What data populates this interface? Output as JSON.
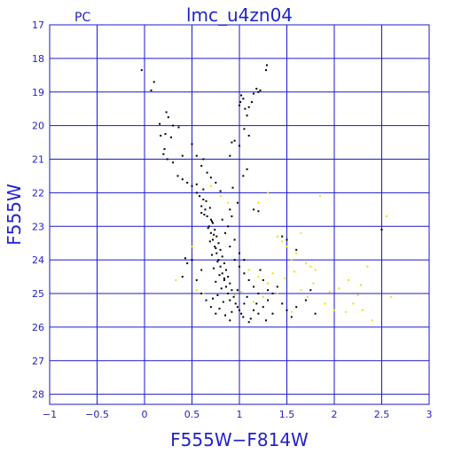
{
  "chart_data": {
    "type": "scatter",
    "title": "lmc_u4zn04",
    "corner_label": "PC",
    "xlabel": "F555W−F814W",
    "ylabel": "F555W",
    "xlim": [
      -1,
      3
    ],
    "ylim": [
      28.3,
      17
    ],
    "y_inverted": true,
    "grid": true,
    "x_ticks": [
      "−1",
      "−0.5",
      "0",
      "0.5",
      "1",
      "1.5",
      "2",
      "2.5",
      "3"
    ],
    "y_ticks": [
      "17",
      "18",
      "19",
      "20",
      "21",
      "22",
      "23",
      "24",
      "25",
      "26",
      "27",
      "28"
    ],
    "colors": {
      "axes": "#1a1acc",
      "text": "#2222cc",
      "main_series": "#000000",
      "secondary_series": "#e6e600"
    },
    "series": [
      {
        "color": "#000000",
        "points": [
          [
            -0.03,
            18.35
          ],
          [
            0.1,
            18.7
          ],
          [
            0.07,
            18.95
          ],
          [
            0.23,
            19.6
          ],
          [
            0.25,
            19.75
          ],
          [
            0.16,
            19.95
          ],
          [
            0.3,
            20.0
          ],
          [
            0.36,
            20.05
          ],
          [
            0.17,
            20.3
          ],
          [
            0.22,
            20.25
          ],
          [
            0.28,
            20.35
          ],
          [
            0.21,
            20.7
          ],
          [
            0.2,
            20.85
          ],
          [
            0.24,
            21.0
          ],
          [
            0.3,
            21.1
          ],
          [
            0.4,
            20.9
          ],
          [
            0.5,
            20.55
          ],
          [
            0.55,
            20.9
          ],
          [
            0.6,
            21.2
          ],
          [
            0.62,
            21.0
          ],
          [
            0.66,
            21.4
          ],
          [
            0.35,
            21.5
          ],
          [
            0.4,
            21.6
          ],
          [
            0.45,
            21.7
          ],
          [
            0.5,
            21.8
          ],
          [
            0.55,
            21.75
          ],
          [
            0.62,
            21.9
          ],
          [
            0.75,
            21.7
          ],
          [
            0.7,
            21.55
          ],
          [
            0.8,
            21.95
          ],
          [
            0.9,
            20.9
          ],
          [
            0.92,
            20.5
          ],
          [
            0.95,
            20.45
          ],
          [
            1.0,
            20.6
          ],
          [
            1.05,
            20.1
          ],
          [
            1.1,
            20.3
          ],
          [
            1.0,
            19.4
          ],
          [
            1.01,
            19.3
          ],
          [
            1.02,
            19.1
          ],
          [
            1.04,
            19.2
          ],
          [
            1.06,
            19.5
          ],
          [
            1.08,
            19.7
          ],
          [
            1.1,
            19.45
          ],
          [
            1.13,
            19.3
          ],
          [
            1.15,
            19.05
          ],
          [
            1.18,
            18.9
          ],
          [
            1.2,
            19.0
          ],
          [
            1.22,
            18.95
          ],
          [
            1.28,
            18.35
          ],
          [
            1.29,
            18.2
          ],
          [
            0.93,
            21.85
          ],
          [
            0.98,
            22.3
          ],
          [
            0.9,
            22.5
          ],
          [
            0.92,
            22.7
          ],
          [
            1.04,
            21.5
          ],
          [
            1.08,
            21.3
          ],
          [
            1.15,
            22.5
          ],
          [
            1.2,
            22.55
          ],
          [
            1.45,
            23.3
          ],
          [
            1.5,
            23.4
          ],
          [
            1.6,
            23.7
          ],
          [
            0.55,
            22.0
          ],
          [
            0.58,
            22.1
          ],
          [
            0.62,
            22.2
          ],
          [
            0.6,
            22.4
          ],
          [
            0.64,
            22.5
          ],
          [
            0.6,
            22.6
          ],
          [
            0.66,
            22.7
          ],
          [
            0.7,
            22.8
          ],
          [
            0.72,
            22.9
          ],
          [
            0.68,
            23.0
          ],
          [
            0.74,
            23.1
          ],
          [
            0.7,
            23.2
          ],
          [
            0.76,
            23.3
          ],
          [
            0.72,
            23.4
          ],
          [
            0.78,
            23.5
          ],
          [
            0.74,
            23.6
          ],
          [
            0.8,
            23.7
          ],
          [
            0.76,
            23.8
          ],
          [
            0.82,
            23.9
          ],
          [
            0.78,
            24.0
          ],
          [
            0.84,
            24.1
          ],
          [
            0.8,
            24.2
          ],
          [
            0.86,
            24.3
          ],
          [
            0.82,
            24.4
          ],
          [
            0.88,
            24.5
          ],
          [
            0.84,
            24.6
          ],
          [
            0.9,
            24.7
          ],
          [
            0.86,
            24.8
          ],
          [
            0.92,
            24.9
          ],
          [
            0.88,
            25.0
          ],
          [
            0.94,
            25.1
          ],
          [
            0.9,
            25.2
          ],
          [
            0.96,
            25.3
          ],
          [
            0.98,
            25.4
          ],
          [
            1.0,
            25.5
          ],
          [
            1.02,
            25.6
          ],
          [
            1.04,
            25.7
          ],
          [
            0.65,
            22.25
          ],
          [
            0.69,
            22.45
          ],
          [
            0.63,
            22.65
          ],
          [
            0.71,
            22.85
          ],
          [
            0.67,
            23.05
          ],
          [
            0.73,
            23.25
          ],
          [
            0.69,
            23.45
          ],
          [
            0.75,
            23.65
          ],
          [
            0.71,
            23.85
          ],
          [
            0.77,
            24.05
          ],
          [
            0.73,
            24.25
          ],
          [
            0.79,
            24.45
          ],
          [
            0.75,
            24.65
          ],
          [
            0.81,
            24.85
          ],
          [
            0.77,
            25.05
          ],
          [
            0.83,
            25.25
          ],
          [
            0.79,
            25.45
          ],
          [
            0.85,
            25.65
          ],
          [
            0.6,
            24.3
          ],
          [
            0.55,
            24.6
          ],
          [
            0.5,
            24.0
          ],
          [
            0.45,
            24.1
          ],
          [
            0.6,
            25.0
          ],
          [
            0.65,
            25.2
          ],
          [
            0.7,
            25.4
          ],
          [
            0.75,
            25.6
          ],
          [
            0.9,
            25.8
          ],
          [
            1.1,
            25.85
          ],
          [
            1.2,
            25.6
          ],
          [
            1.25,
            25.4
          ],
          [
            1.3,
            25.2
          ],
          [
            1.35,
            25.0
          ],
          [
            1.4,
            24.8
          ],
          [
            1.45,
            25.3
          ],
          [
            1.5,
            25.5
          ],
          [
            1.55,
            25.7
          ],
          [
            1.6,
            25.4
          ],
          [
            1.0,
            24.2
          ],
          [
            1.05,
            24.4
          ],
          [
            1.1,
            24.6
          ],
          [
            1.15,
            24.8
          ],
          [
            1.2,
            25.0
          ],
          [
            1.25,
            24.6
          ],
          [
            1.3,
            24.9
          ],
          [
            1.35,
            25.6
          ],
          [
            1.15,
            25.5
          ],
          [
            1.05,
            25.3
          ],
          [
            0.95,
            24.0
          ],
          [
            1.0,
            23.8
          ],
          [
            1.05,
            24.0
          ],
          [
            0.98,
            24.9
          ],
          [
            1.08,
            25.1
          ],
          [
            1.18,
            25.3
          ],
          [
            1.28,
            25.8
          ],
          [
            0.85,
            23.2
          ],
          [
            0.9,
            23.6
          ],
          [
            0.95,
            23.4
          ],
          [
            0.82,
            22.8
          ],
          [
            0.88,
            23.0
          ],
          [
            2.5,
            23.1
          ],
          [
            0.43,
            23.95
          ],
          [
            0.4,
            24.5
          ],
          [
            1.7,
            25.2
          ],
          [
            1.75,
            24.9
          ],
          [
            1.8,
            25.6
          ],
          [
            0.92,
            25.55
          ],
          [
            1.12,
            25.75
          ],
          [
            1.22,
            24.3
          ],
          [
            0.84,
            24.55
          ],
          [
            0.72,
            25.15
          ]
        ]
      },
      {
        "color": "#e6e600",
        "points": [
          [
            0.33,
            24.6
          ],
          [
            0.5,
            23.6
          ],
          [
            0.55,
            24.9
          ],
          [
            0.7,
            21.8
          ],
          [
            0.8,
            22.1
          ],
          [
            0.88,
            22.3
          ],
          [
            1.2,
            22.3
          ],
          [
            1.3,
            22.0
          ],
          [
            1.4,
            23.3
          ],
          [
            1.45,
            23.45
          ],
          [
            1.5,
            23.6
          ],
          [
            1.55,
            24.0
          ],
          [
            1.6,
            23.8
          ],
          [
            1.65,
            23.2
          ],
          [
            1.7,
            24.1
          ],
          [
            1.75,
            24.2
          ],
          [
            1.8,
            24.3
          ],
          [
            1.85,
            22.1
          ],
          [
            1.65,
            24.9
          ],
          [
            1.72,
            25.1
          ],
          [
            1.78,
            24.7
          ],
          [
            1.9,
            25.3
          ],
          [
            1.95,
            24.95
          ],
          [
            2.0,
            25.5
          ],
          [
            2.05,
            24.85
          ],
          [
            2.15,
            24.6
          ],
          [
            2.2,
            25.3
          ],
          [
            2.25,
            25.05
          ],
          [
            2.28,
            24.75
          ],
          [
            2.3,
            25.5
          ],
          [
            2.35,
            24.2
          ],
          [
            2.4,
            25.8
          ],
          [
            2.55,
            22.7
          ],
          [
            1.1,
            24.3
          ],
          [
            1.2,
            24.5
          ],
          [
            1.3,
            24.7
          ],
          [
            1.35,
            24.4
          ],
          [
            1.4,
            25.0
          ],
          [
            1.25,
            25.1
          ],
          [
            1.15,
            25.25
          ],
          [
            1.55,
            25.55
          ],
          [
            0.62,
            25.0
          ],
          [
            0.95,
            25.05
          ],
          [
            1.02,
            24.95
          ],
          [
            1.48,
            24.55
          ],
          [
            1.58,
            24.35
          ],
          [
            2.12,
            25.55
          ],
          [
            2.6,
            25.1
          ]
        ]
      }
    ]
  }
}
